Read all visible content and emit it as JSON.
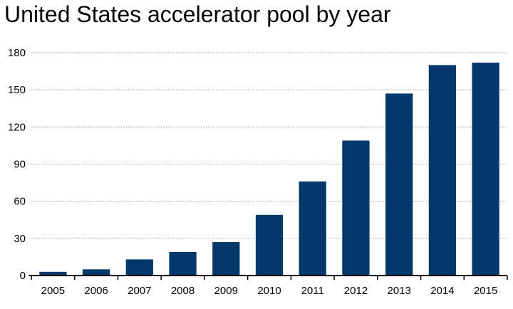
{
  "chart_data": {
    "type": "bar",
    "title": "United States accelerator pool by year",
    "xlabel": "",
    "ylabel": "",
    "categories": [
      "2005",
      "2006",
      "2007",
      "2008",
      "2009",
      "2010",
      "2011",
      "2012",
      "2013",
      "2014",
      "2015"
    ],
    "values": [
      3,
      5,
      13,
      19,
      27,
      49,
      76,
      109,
      147,
      170,
      172
    ],
    "ylim": [
      0,
      180
    ],
    "yticks": [
      0,
      30,
      60,
      90,
      120,
      150,
      180
    ],
    "grid": true,
    "bar_color": "#03386b",
    "grid_color": "#9a9a9a",
    "axis_color": "#000000"
  }
}
